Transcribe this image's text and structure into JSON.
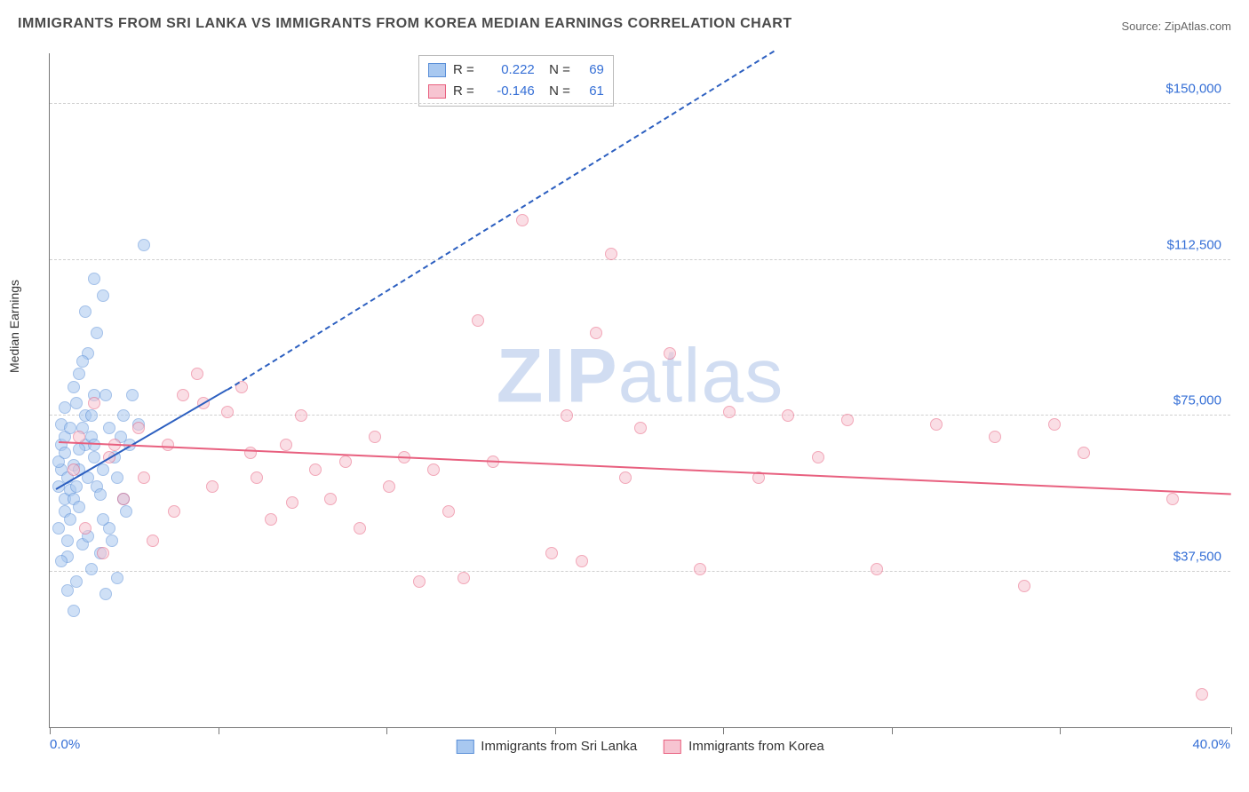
{
  "title": "IMMIGRANTS FROM SRI LANKA VS IMMIGRANTS FROM KOREA MEDIAN EARNINGS CORRELATION CHART",
  "source": "Source: ZipAtlas.com",
  "watermark_zip": "ZIP",
  "watermark_atlas": "atlas",
  "ylabel": "Median Earnings",
  "chart": {
    "type": "scatter",
    "xlim": [
      0,
      40
    ],
    "ylim": [
      0,
      162500
    ],
    "x_min_label": "0.0%",
    "x_max_label": "40.0%",
    "xtick_positions": [
      0,
      5.7,
      11.4,
      17.1,
      22.8,
      28.5,
      34.2,
      40
    ],
    "yticks": [
      37500,
      75000,
      112500,
      150000
    ],
    "ytick_labels": [
      "$37,500",
      "$75,000",
      "$112,500",
      "$150,000"
    ],
    "background_color": "#ffffff",
    "grid_color": "#d0d0d0",
    "axis_color": "#777777",
    "marker_size": 14,
    "marker_opacity": 0.55,
    "series": [
      {
        "name": "Immigrants from Sri Lanka",
        "color_fill": "#a8c8f0",
        "color_stroke": "#5a8fd8",
        "r": "0.222",
        "n": "69",
        "trend": {
          "x1": 0.2,
          "y1": 57000,
          "x2": 6.0,
          "y2": 81000,
          "color": "#2c5fc0",
          "dashed_extend_to_x": 24.5,
          "dashed_extend_to_y": 162500
        },
        "points": [
          [
            0.3,
            58000
          ],
          [
            0.4,
            62000
          ],
          [
            0.5,
            55000
          ],
          [
            0.3,
            64000
          ],
          [
            0.6,
            60000
          ],
          [
            0.4,
            68000
          ],
          [
            0.5,
            52000
          ],
          [
            0.7,
            57000
          ],
          [
            0.3,
            48000
          ],
          [
            0.8,
            63000
          ],
          [
            0.5,
            70000
          ],
          [
            0.6,
            45000
          ],
          [
            0.4,
            73000
          ],
          [
            0.9,
            58000
          ],
          [
            0.5,
            66000
          ],
          [
            1.0,
            62000
          ],
          [
            0.7,
            50000
          ],
          [
            1.2,
            68000
          ],
          [
            0.8,
            55000
          ],
          [
            1.1,
            72000
          ],
          [
            0.6,
            41000
          ],
          [
            1.3,
            60000
          ],
          [
            0.9,
            78000
          ],
          [
            1.5,
            65000
          ],
          [
            1.0,
            53000
          ],
          [
            1.4,
            70000
          ],
          [
            1.6,
            58000
          ],
          [
            1.2,
            75000
          ],
          [
            1.8,
            62000
          ],
          [
            1.5,
            68000
          ],
          [
            2.0,
            72000
          ],
          [
            1.7,
            56000
          ],
          [
            2.2,
            65000
          ],
          [
            1.9,
            80000
          ],
          [
            2.4,
            70000
          ],
          [
            1.1,
            44000
          ],
          [
            2.0,
            48000
          ],
          [
            2.5,
            75000
          ],
          [
            1.8,
            50000
          ],
          [
            2.7,
            68000
          ],
          [
            2.3,
            60000
          ],
          [
            3.0,
            73000
          ],
          [
            1.4,
            38000
          ],
          [
            2.6,
            52000
          ],
          [
            1.0,
            85000
          ],
          [
            1.3,
            90000
          ],
          [
            1.6,
            95000
          ],
          [
            1.2,
            100000
          ],
          [
            1.5,
            80000
          ],
          [
            0.5,
            77000
          ],
          [
            0.8,
            82000
          ],
          [
            1.1,
            88000
          ],
          [
            1.4,
            75000
          ],
          [
            0.7,
            72000
          ],
          [
            1.0,
            67000
          ],
          [
            2.8,
            80000
          ],
          [
            0.4,
            40000
          ],
          [
            0.9,
            35000
          ],
          [
            1.7,
            42000
          ],
          [
            2.1,
            45000
          ],
          [
            0.6,
            33000
          ],
          [
            1.3,
            46000
          ],
          [
            2.5,
            55000
          ],
          [
            1.8,
            104000
          ],
          [
            1.5,
            108000
          ],
          [
            3.2,
            116000
          ],
          [
            0.8,
            28000
          ],
          [
            1.9,
            32000
          ],
          [
            2.3,
            36000
          ]
        ]
      },
      {
        "name": "Immigrants from Korea",
        "color_fill": "#f7c4d1",
        "color_stroke": "#e8607f",
        "r": "-0.146",
        "n": "61",
        "trend": {
          "x1": 0.3,
          "y1": 68500,
          "x2": 40,
          "y2": 56000,
          "color": "#e8607f"
        },
        "points": [
          [
            1.0,
            70000
          ],
          [
            1.5,
            78000
          ],
          [
            2.0,
            65000
          ],
          [
            2.5,
            55000
          ],
          [
            3.0,
            72000
          ],
          [
            3.5,
            45000
          ],
          [
            4.0,
            68000
          ],
          [
            4.5,
            80000
          ],
          [
            5.0,
            85000
          ],
          [
            5.5,
            58000
          ],
          [
            6.0,
            76000
          ],
          [
            6.5,
            82000
          ],
          [
            7.0,
            60000
          ],
          [
            7.5,
            50000
          ],
          [
            8.0,
            68000
          ],
          [
            8.5,
            75000
          ],
          [
            9.0,
            62000
          ],
          [
            9.5,
            55000
          ],
          [
            10.0,
            64000
          ],
          [
            10.5,
            48000
          ],
          [
            11.0,
            70000
          ],
          [
            11.5,
            58000
          ],
          [
            12.0,
            65000
          ],
          [
            12.5,
            35000
          ],
          [
            13.0,
            62000
          ],
          [
            13.5,
            52000
          ],
          [
            14.0,
            36000
          ],
          [
            15.0,
            64000
          ],
          [
            16.0,
            122000
          ],
          [
            17.0,
            42000
          ],
          [
            17.5,
            75000
          ],
          [
            18.0,
            40000
          ],
          [
            18.5,
            95000
          ],
          [
            19.0,
            114000
          ],
          [
            19.5,
            60000
          ],
          [
            20.0,
            72000
          ],
          [
            21.0,
            90000
          ],
          [
            22.0,
            38000
          ],
          [
            23.0,
            76000
          ],
          [
            24.0,
            60000
          ],
          [
            25.0,
            75000
          ],
          [
            26.0,
            65000
          ],
          [
            27.0,
            74000
          ],
          [
            28.0,
            38000
          ],
          [
            30.0,
            73000
          ],
          [
            32.0,
            70000
          ],
          [
            33.0,
            34000
          ],
          [
            34.0,
            73000
          ],
          [
            35.0,
            66000
          ],
          [
            38.0,
            55000
          ],
          [
            39.0,
            8000
          ],
          [
            0.8,
            62000
          ],
          [
            1.2,
            48000
          ],
          [
            1.8,
            42000
          ],
          [
            2.2,
            68000
          ],
          [
            3.2,
            60000
          ],
          [
            4.2,
            52000
          ],
          [
            5.2,
            78000
          ],
          [
            6.8,
            66000
          ],
          [
            8.2,
            54000
          ],
          [
            14.5,
            98000
          ]
        ]
      }
    ],
    "legend_labels": [
      "Immigrants from Sri Lanka",
      "Immigrants from Korea"
    ]
  },
  "stats_labels": {
    "r": "R =",
    "n": "N ="
  }
}
